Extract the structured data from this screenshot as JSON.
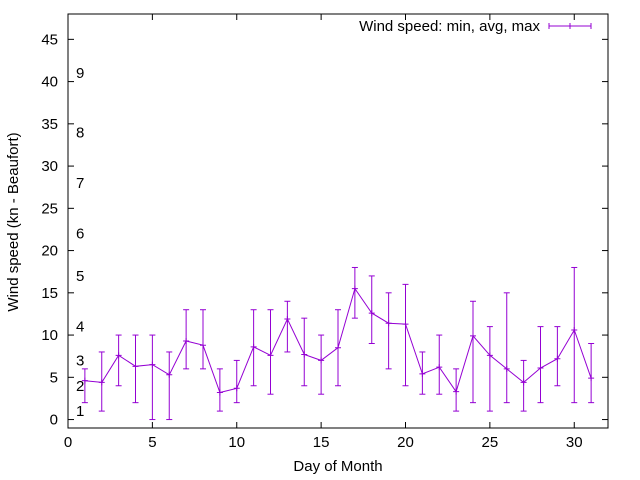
{
  "chart_data": {
    "type": "line",
    "title": "",
    "xlabel": "Day of Month",
    "ylabel": "Wind speed (kn - Beaufort)",
    "xlim": [
      0,
      32
    ],
    "ylim": [
      -1,
      48
    ],
    "xticks": [
      0,
      5,
      10,
      15,
      20,
      25,
      30
    ],
    "yticks": [
      0,
      5,
      10,
      15,
      20,
      25,
      30,
      35,
      40,
      45
    ],
    "grid": false,
    "legend_position": "top-right",
    "series_color": "#9400D3",
    "series": [
      {
        "name": "Wind speed: min, avg, max",
        "x": [
          1,
          2,
          3,
          4,
          5,
          6,
          7,
          8,
          9,
          10,
          11,
          12,
          13,
          14,
          15,
          16,
          17,
          18,
          19,
          20,
          21,
          22,
          23,
          24,
          25,
          26,
          27,
          28,
          29,
          30,
          31
        ],
        "avg": [
          4.6,
          4.4,
          7.6,
          6.3,
          6.5,
          5.3,
          9.3,
          8.8,
          3.2,
          3.7,
          8.6,
          7.6,
          11.9,
          7.7,
          7.0,
          8.5,
          15.5,
          12.6,
          11.4,
          11.3,
          5.4,
          6.2,
          3.3,
          9.9,
          7.6,
          6.0,
          4.4,
          6.1,
          7.2,
          10.6,
          4.9
        ],
        "min": [
          2,
          1,
          4,
          2,
          0,
          0,
          6,
          6,
          1,
          2,
          4,
          3,
          8,
          4,
          3,
          4,
          12,
          9,
          6,
          4,
          3,
          3,
          1,
          2,
          1,
          2,
          1,
          2,
          4,
          2,
          2
        ],
        "max": [
          6,
          8,
          10,
          10,
          10,
          8,
          13,
          13,
          6,
          7,
          13,
          13,
          14,
          12,
          10,
          13,
          18,
          17,
          15,
          16,
          8,
          10,
          6,
          14,
          11,
          15,
          7,
          11,
          11,
          18,
          9
        ]
      }
    ],
    "beaufort_labels": [
      {
        "text": "1",
        "y": 1
      },
      {
        "text": "2",
        "y": 4
      },
      {
        "text": "3",
        "y": 7
      },
      {
        "text": "4",
        "y": 11
      },
      {
        "text": "5",
        "y": 17
      },
      {
        "text": "6",
        "y": 22
      },
      {
        "text": "7",
        "y": 28
      },
      {
        "text": "8",
        "y": 34
      },
      {
        "text": "9",
        "y": 41
      }
    ]
  }
}
